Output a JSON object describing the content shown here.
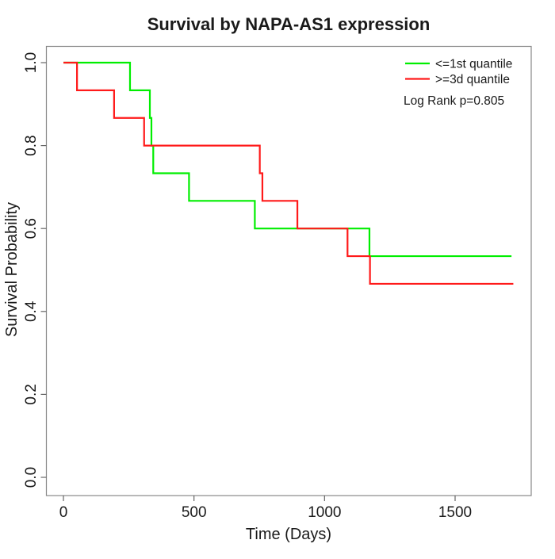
{
  "title": "Survival by NAPA-AS1 expression",
  "x_axis": {
    "label": "Time (Days)",
    "tick_labels": [
      "0",
      "500",
      "1000",
      "1500"
    ]
  },
  "y_axis": {
    "label": "Survival Probability",
    "tick_labels": [
      "0.0",
      "0.2",
      "0.4",
      "0.6",
      "0.8",
      "1.0"
    ]
  },
  "legend": {
    "items": [
      {
        "label": "<=1st quantile",
        "color": "#00ee00"
      },
      {
        "label": ">=3d quantile",
        "color": "#ff1a1a"
      }
    ],
    "note": "Log Rank p=0.805"
  },
  "chart_data": {
    "type": "line",
    "subtype": "kaplan-meier-step",
    "title": "Survival by NAPA-AS1 expression",
    "xlabel": "Time (Days)",
    "ylabel": "Survival Probability",
    "xlim": [
      0,
      1723
    ],
    "ylim": [
      0.0,
      1.0
    ],
    "x_ticks": [
      0,
      500,
      1000,
      1500
    ],
    "y_ticks": [
      0.0,
      0.2,
      0.4,
      0.6,
      0.8,
      1.0
    ],
    "grid": false,
    "legend_position": "topright",
    "annotation": "Log Rank p=0.805",
    "series": [
      {
        "name": "<=1st quantile",
        "color": "#00ee00",
        "steps": [
          [
            0,
            1.0
          ],
          [
            255,
            0.9333
          ],
          [
            331,
            0.8667
          ],
          [
            337,
            0.8
          ],
          [
            344,
            0.7333
          ],
          [
            481,
            0.6667
          ],
          [
            733,
            0.6
          ],
          [
            1172,
            0.5333
          ]
        ],
        "end_day": 1716
      },
      {
        "name": ">=3d quantile",
        "color": "#ff1a1a",
        "steps": [
          [
            0,
            1.0
          ],
          [
            52,
            0.9333
          ],
          [
            194,
            0.8667
          ],
          [
            309,
            0.8
          ],
          [
            752,
            0.7333
          ],
          [
            762,
            0.6667
          ],
          [
            896,
            0.6
          ],
          [
            1088,
            0.5333
          ],
          [
            1174,
            0.4667
          ]
        ],
        "end_day": 1723
      }
    ]
  }
}
